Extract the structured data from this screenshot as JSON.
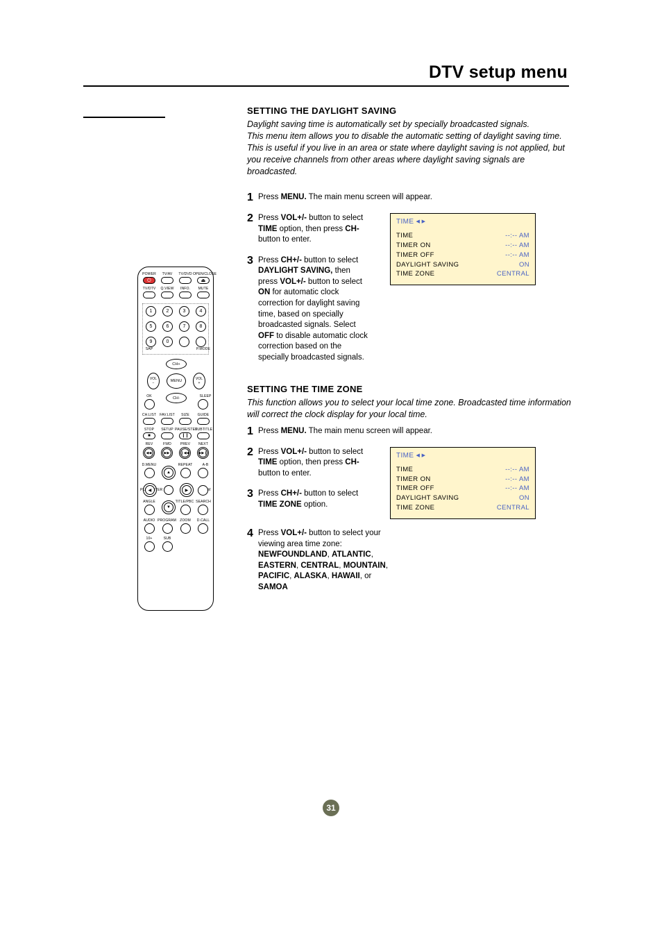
{
  "page_title": "DTV setup menu",
  "page_number": "31",
  "sec1": {
    "heading": "SETTING THE DAYLIGHT SAVING",
    "intro": "Daylight saving time is automatically set by specially broadcasted signals.\nThis menu item allows you to disable the automatic setting of daylight saving time. This is useful if you live in an area or state where daylight saving is not applied, but you receive channels from other areas where daylight saving signals are broadcasted.",
    "step1": {
      "num": "1",
      "a": "Press ",
      "b": "MENU.",
      "c": " The main menu screen will appear."
    },
    "step2": {
      "num": "2",
      "a": "Press ",
      "b": "VOL+/-",
      "c": " button to select ",
      "d": "TIME",
      "e": "  option, then press ",
      "f": "CH-",
      "g": " button to enter."
    },
    "step3": {
      "num": "3",
      "a": "Press ",
      "b": "CH+/-",
      "c": " button to select ",
      "d": "DAYLIGHT SAVING,",
      "e": "then press ",
      "f": "VOL+/-",
      "g": " button to select ",
      "h": "ON",
      "i": " for automatic clock correction for daylight saving time, based on specially broadcasted signals. Select ",
      "j": "OFF",
      "k": " to disable automatic clock correction based on the specially broadcasted signals."
    }
  },
  "sec2": {
    "heading": "SETTING THE TIME ZONE",
    "intro": "This function allows you to select your local time zone. Broadcasted time information will correct the clock display for your local time.",
    "step1": {
      "num": "1",
      "a": "Press ",
      "b": "MENU.",
      "c": " The main menu screen will appear."
    },
    "step2": {
      "num": "2",
      "a": "Press ",
      "b": "VOL+/-",
      "c": " button to select ",
      "d": "TIME",
      "e": "  option, then press ",
      "f": "CH-",
      "g": " button to enter."
    },
    "step3": {
      "num": "3",
      "a": "Press ",
      "b": "CH+/-",
      "c": " button to select ",
      "d": "TIME ZONE",
      "e": " option."
    },
    "step4": {
      "num": "4",
      "a": "Press ",
      "b": "VOL+/-",
      "c": " button to select your viewing area time zone: ",
      "z1": "NEWFOUNDLAND",
      "z2": "ATLANTIC",
      "z3": "EASTERN",
      "z4": "CENTRAL",
      "z5": "MOUNTAIN",
      "z6": "PACIFIC",
      "z7": "ALASKA",
      "z8": "HAWAII",
      "or": ", or ",
      "z9": "SAMOA"
    }
  },
  "osd": {
    "title": "TIME",
    "rows": [
      {
        "l": "TIME",
        "v": "--:-- AM"
      },
      {
        "l": "TIMER  ON",
        "v": "--:-- AM"
      },
      {
        "l": "TIMER  OFF",
        "v": "--:-- AM"
      },
      {
        "l": "DAYLIGHT SAVING",
        "v": "ON"
      },
      {
        "l": "TIME ZONE",
        "v": "CENTRAL"
      }
    ]
  },
  "remote": {
    "row1_labels": [
      "POWER",
      "TV/AV",
      "TV/DVD",
      "OPEN/CLOSE"
    ],
    "row2_labels": [
      "TV/DTV",
      "Q.VIEW",
      "INFO.",
      "MUTE"
    ],
    "bottom_labels": [
      "SAP",
      "P.MODE"
    ],
    "chp": "CH+",
    "chm": "CH-",
    "volm": "VOL\n−",
    "volp": "VOL\n+",
    "menu": "MENU",
    "ok": "OK",
    "sleep": "SLEEP",
    "row3_labels": [
      "CH.LIST",
      "FAV.LIST",
      "SIZE",
      "GUIDE"
    ],
    "row4_labels": [
      "STOP",
      "SETUP",
      "PAUSE/STEP",
      "SUBTITLE"
    ],
    "row5_labels": [
      "REV",
      "FWD",
      "PREV",
      "NEXT"
    ],
    "dmenu": "D.MENU",
    "repeat": "REPEAT",
    "ab": "A-B",
    "playenter": "PLAY/ENTER",
    "slow": "SLOW",
    "angle": "ANGLE",
    "titlepbc": "TITLE/PBC",
    "search": "SEARCH",
    "row8_labels": [
      "AUDIO",
      "PROGRAM",
      "ZOOM",
      "D.CALL"
    ],
    "row9_labels": [
      "10+",
      "SUB"
    ],
    "eject": "⏏",
    "stop_sym": "■",
    "pause_sym": "❙❙",
    "rev_sym": "◀◀",
    "fwd_sym": "▶▶",
    "prev_sym": "❙◀◀",
    "next_sym": "▶▶❙",
    "up_sym": "▲",
    "down_sym": "▼",
    "left_sym": "◀",
    "right_sym": "▶"
  }
}
